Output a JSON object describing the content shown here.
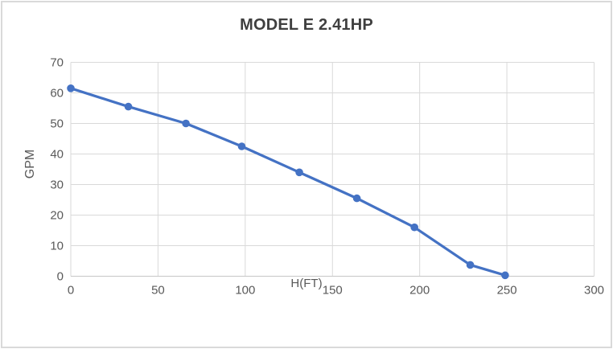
{
  "window": {
    "background_color": "#ffffff",
    "frame_border_color": "#d9d9d9"
  },
  "chart_data": {
    "type": "line",
    "title": "MODEL E 2.41HP",
    "xlabel": "H(FT)",
    "ylabel": "GPM",
    "x": [
      0,
      33,
      66,
      98,
      131,
      164,
      197,
      229,
      249
    ],
    "y": [
      61.5,
      55.5,
      50,
      42.5,
      34,
      25.5,
      16,
      3.7,
      0.3
    ],
    "xlim": [
      0,
      300
    ],
    "ylim": [
      0,
      70
    ],
    "x_ticks": [
      0,
      50,
      100,
      150,
      200,
      250,
      300
    ],
    "y_ticks": [
      0,
      10,
      20,
      30,
      40,
      50,
      60,
      70
    ],
    "grid": true,
    "legend": "none",
    "marker": "circle",
    "series_color": "#4472C4",
    "gridline_color": "#d9d9d9",
    "axis_line_color": "#c6c6c6",
    "tick_label_color": "#595959",
    "title_color": "#3f3f3f"
  }
}
